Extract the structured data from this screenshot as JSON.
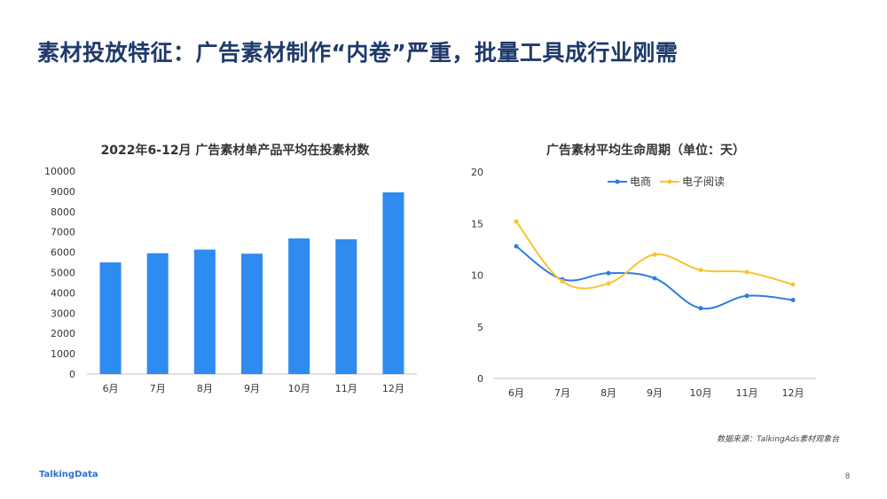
{
  "page": {
    "title": "素材投放特征：广告素材制作“内卷”严重，批量工具成行业刚需",
    "source": "数据来源：TalkingAds素材观象台",
    "logo": "TalkingData",
    "page_number": "8"
  },
  "colors": {
    "bar": "#2e8bf0",
    "series1": "#2e7de1",
    "series2": "#f7c531",
    "axis": "#bfbfbf",
    "title": "#1f3a6b"
  },
  "chart_data": [
    {
      "type": "bar",
      "title": "2022年6-12月 广告素材单产品平均在投素材数",
      "categories": [
        "6月",
        "7月",
        "8月",
        "9月",
        "10月",
        "11月",
        "12月"
      ],
      "values": [
        5500,
        5950,
        6130,
        5930,
        6680,
        6640,
        8950
      ],
      "ylim": [
        0,
        10000
      ],
      "yticks": [
        "0",
        "1000",
        "2000",
        "3000",
        "4000",
        "5000",
        "6000",
        "7000",
        "8000",
        "9000",
        "10000"
      ],
      "grid": false
    },
    {
      "type": "line",
      "title": "广告素材平均生命周期（单位：天）",
      "categories": [
        "6月",
        "7月",
        "8月",
        "9月",
        "10月",
        "11月",
        "12月"
      ],
      "ylim": [
        0,
        20
      ],
      "yticks": [
        "0",
        "5",
        "10",
        "15",
        "20"
      ],
      "legend": "top",
      "series": [
        {
          "name": "电商",
          "values": [
            12.8,
            9.6,
            10.2,
            9.7,
            6.8,
            8.0,
            7.6
          ]
        },
        {
          "name": "电子阅读",
          "values": [
            15.2,
            9.4,
            9.2,
            12.0,
            10.5,
            10.3,
            9.1
          ]
        }
      ],
      "grid": false
    }
  ]
}
